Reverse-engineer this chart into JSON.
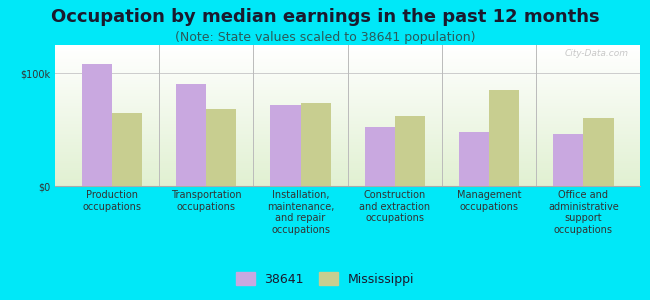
{
  "title": "Occupation by median earnings in the past 12 months",
  "subtitle": "(Note: State values scaled to 38641 population)",
  "categories": [
    "Production\noccupations",
    "Transportation\noccupations",
    "Installation,\nmaintenance,\nand repair\noccupations",
    "Construction\nand extraction\noccupations",
    "Management\noccupations",
    "Office and\nadministrative\nsupport\noccupations"
  ],
  "values_38641": [
    108000,
    90000,
    72000,
    52000,
    48000,
    46000
  ],
  "values_ms": [
    65000,
    68000,
    74000,
    62000,
    85000,
    60000
  ],
  "color_38641": "#c9a8e0",
  "color_ms": "#c8ce90",
  "bar_width": 0.32,
  "ylim": [
    0,
    125000
  ],
  "yticks": [
    0,
    100000
  ],
  "ytick_labels": [
    "$0",
    "$100k"
  ],
  "background_outer": "#00e8f8",
  "legend_label_38641": "38641",
  "legend_label_ms": "Mississippi",
  "title_fontsize": 13,
  "subtitle_fontsize": 9,
  "tick_label_fontsize": 7,
  "legend_fontsize": 9,
  "watermark": "City-Data.com"
}
